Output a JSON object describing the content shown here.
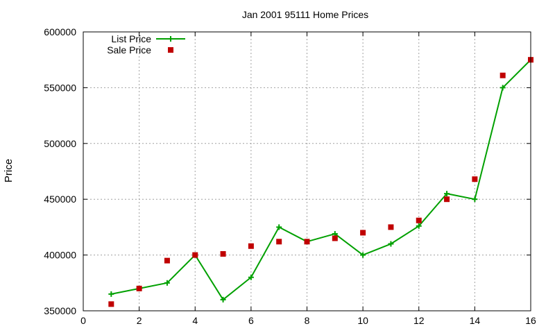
{
  "chart_data": {
    "type": "line",
    "title": "Jan 2001 95111 Home Prices",
    "xlabel": "",
    "ylabel": "Price",
    "xlim": [
      0,
      16
    ],
    "ylim": [
      350000,
      600000
    ],
    "xticks": [
      0,
      2,
      4,
      6,
      8,
      10,
      12,
      14,
      16
    ],
    "yticks": [
      350000,
      400000,
      450000,
      500000,
      550000,
      600000
    ],
    "grid": true,
    "legend_position": "top-left",
    "series": [
      {
        "name": "List Price",
        "style": "line+points",
        "marker": "plus",
        "color": "#00a000",
        "x": [
          1,
          2,
          3,
          4,
          5,
          6,
          7,
          8,
          9,
          10,
          11,
          12,
          13,
          14,
          15,
          16
        ],
        "values": [
          365000,
          370000,
          375000,
          400000,
          360000,
          380000,
          425000,
          412000,
          419000,
          400000,
          410000,
          426000,
          455000,
          450000,
          550000,
          575000
        ]
      },
      {
        "name": "Sale Price",
        "style": "points",
        "marker": "square",
        "color": "#c00000",
        "x": [
          1,
          2,
          3,
          4,
          5,
          6,
          7,
          8,
          9,
          10,
          11,
          12,
          13,
          14,
          15,
          16
        ],
        "values": [
          356000,
          370000,
          395000,
          400000,
          401000,
          408000,
          412000,
          412000,
          415000,
          420000,
          425000,
          431000,
          450000,
          468000,
          561000,
          575000
        ]
      }
    ]
  }
}
